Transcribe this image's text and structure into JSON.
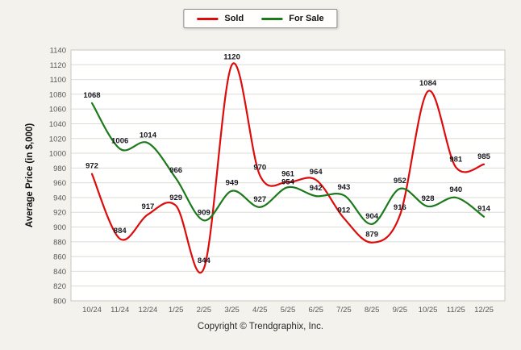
{
  "colors": {
    "page_background": "#f4f2ec",
    "plot_background": "#ffffff",
    "grid_line": "#dddbd4",
    "plot_border": "#c9c7c0",
    "tick_text": "#595959",
    "axis_title_text": "#111111",
    "data_label_text": "#17171f",
    "sold_line": "#dd0c0c",
    "for_sale_line": "#1c7a1c"
  },
  "legend": {
    "items": [
      {
        "label": "Sold",
        "color": "#dd0c0c"
      },
      {
        "label": "For Sale",
        "color": "#1c7a1c"
      }
    ]
  },
  "footer": "Copyright © Trendgraphix, Inc.",
  "chart_data": {
    "type": "line",
    "title": "",
    "xlabel": "",
    "ylabel": "Average Price (in $,000)",
    "categories": [
      "10/24",
      "11/24",
      "12/24",
      "1/25",
      "2/25",
      "3/25",
      "4/25",
      "5/25",
      "6/25",
      "7/25",
      "8/25",
      "9/25",
      "10/25",
      "11/25",
      "12/25"
    ],
    "series": [
      {
        "name": "Sold",
        "color": "#dd0c0c",
        "values": [
          972,
          884,
          917,
          929,
          844,
          1120,
          970,
          961,
          964,
          912,
          879,
          916,
          1084,
          981,
          985
        ]
      },
      {
        "name": "For Sale",
        "color": "#1c7a1c",
        "values": [
          1068,
          1006,
          1014,
          966,
          909,
          949,
          927,
          954,
          942,
          943,
          904,
          952,
          928,
          940,
          914
        ]
      }
    ],
    "ylim": [
      800,
      1140
    ],
    "ytick_step": 20,
    "grid": true,
    "legend_position": "top-center",
    "curve": "smooth",
    "data_labels": true
  }
}
